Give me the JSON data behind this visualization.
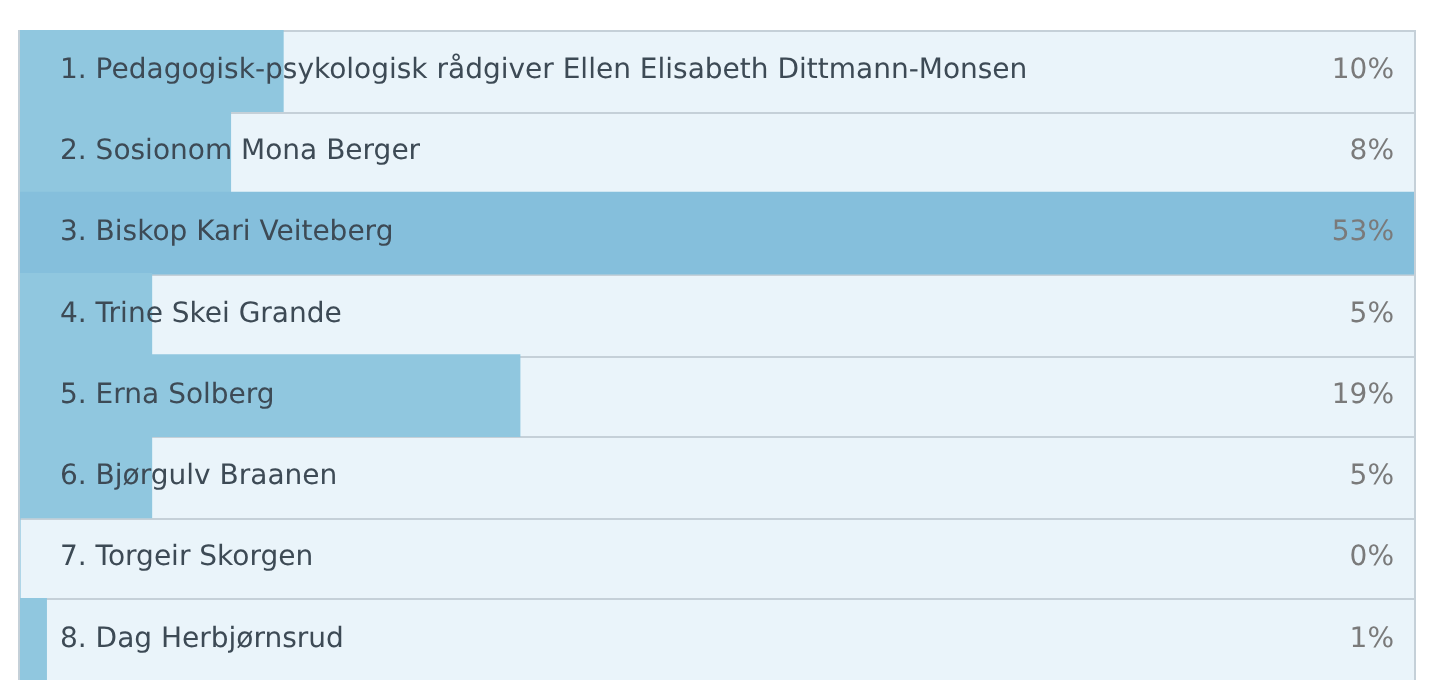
{
  "chart_data": {
    "type": "bar",
    "orientation": "horizontal",
    "categories": [
      "1. Pedagogisk-psykologisk rådgiver Ellen Elisabeth Dittmann-Monsen",
      "2. Sosionom Mona Berger",
      "3. Biskop Kari Veiteberg",
      "4. Trine Skei Grande",
      "5. Erna Solberg",
      "6. Bjørgulv Braanen",
      "7. Torgeir Skorgen",
      "8. Dag Herbjørnsrud"
    ],
    "values": [
      10,
      8,
      53,
      5,
      19,
      5,
      0,
      1
    ],
    "colors": [
      "#90c7df",
      "#90c7df",
      "#85bfdc",
      "#90c7df",
      "#90c7df",
      "#90c7df",
      "#90c7df",
      "#90c7df"
    ],
    "value_labels": [
      "10%",
      "8%",
      "53%",
      "5%",
      "19%",
      "5%",
      "0%",
      "1%"
    ],
    "legend": false
  }
}
